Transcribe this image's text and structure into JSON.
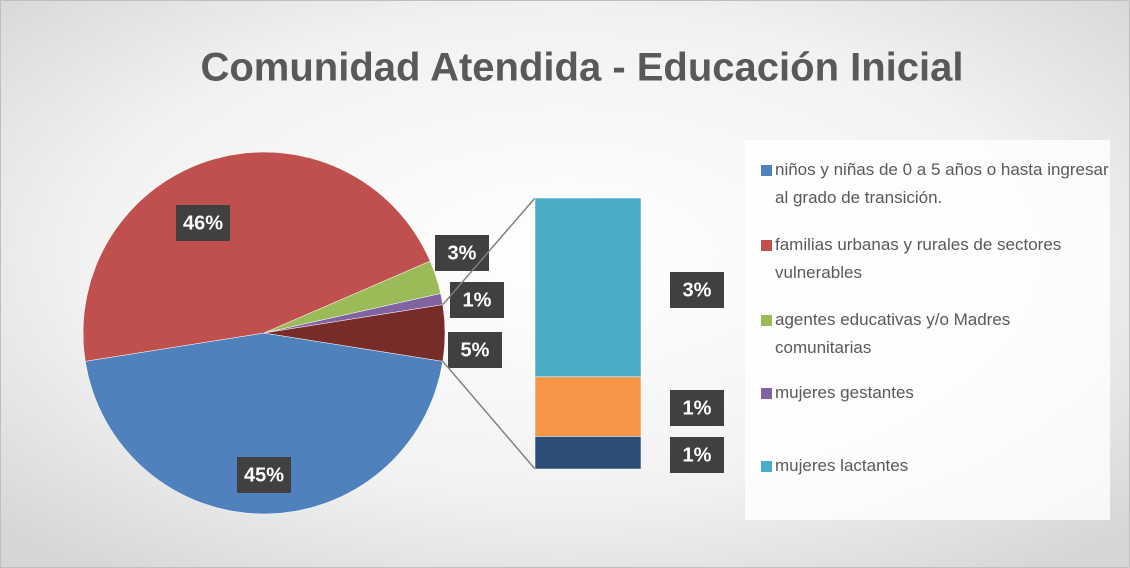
{
  "chart_data": {
    "type": "pie",
    "title": "Comunidad Atendida - Educación Inicial",
    "categories": [
      "niños y niñas de 0 a 5 años o hasta ingresar al grado de transición.",
      "familias urbanas y rurales de sectores vulnerables",
      "agentes educativas y/o Madres comunitarias",
      "mujeres gestantes",
      null
    ],
    "values": [
      45,
      46,
      3,
      1,
      5
    ],
    "value_labels": [
      "45%",
      "46%",
      "3%",
      "1%",
      "5%"
    ],
    "colors": [
      "#4f81bd",
      "#c0504d",
      "#9bbb59",
      "#8064a2",
      "#772c2a"
    ],
    "secondary": {
      "type": "bar",
      "categories": [
        "mujeres lactantes",
        null,
        null
      ],
      "values": [
        3.3,
        1.1,
        0.6
      ],
      "value_labels": [
        "3%",
        "1%",
        "1%"
      ],
      "colors": [
        "#4bacc6",
        "#f79646",
        "#2c4d75"
      ]
    }
  }
}
